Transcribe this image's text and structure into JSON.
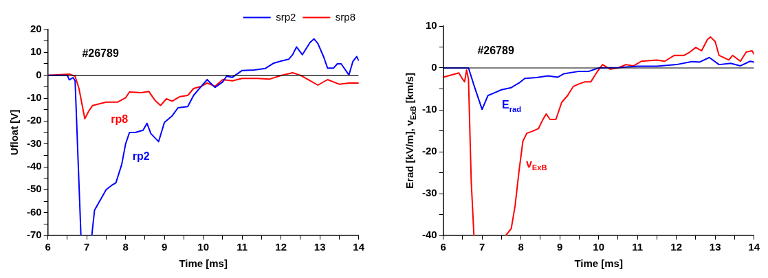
{
  "chart_data": [
    {
      "type": "line",
      "xlabel": "Time [ms]",
      "ylabel": "Ufloat [V]",
      "xlim": [
        6,
        14
      ],
      "ylim": [
        -70,
        20
      ],
      "xticks": [
        6,
        {
          "value": 6.5,
          "label": null
        },
        7,
        {
          "value": 7.5,
          "label": null
        },
        8,
        {
          "value": 8.5,
          "label": null
        },
        9,
        {
          "value": 9.5,
          "label": null
        },
        10,
        {
          "value": 10.5,
          "label": null
        },
        11,
        {
          "value": 11.5,
          "label": null
        },
        12,
        {
          "value": 12.5,
          "label": null
        },
        13,
        {
          "value": 13.5,
          "label": null
        },
        14
      ],
      "yticks": [
        -70,
        {
          "value": -65,
          "label": null
        },
        -60,
        {
          "value": -55,
          "label": null
        },
        -50,
        {
          "value": -45,
          "label": null
        },
        -40,
        {
          "value": -35,
          "label": null
        },
        -30,
        {
          "value": -25,
          "label": null
        },
        -20,
        {
          "value": -15,
          "label": null
        },
        -10,
        {
          "value": -5,
          "label": null
        },
        0,
        {
          "value": 5,
          "label": null
        },
        10,
        {
          "value": 15,
          "label": null
        },
        20
      ],
      "legend": "top right",
      "line_style": "solid",
      "marker": "none",
      "ref_lines": [
        {
          "axis": "y",
          "value": 0,
          "color": "#000000"
        }
      ],
      "annotations": [
        "#26789",
        "rp8",
        "rp2"
      ],
      "series": [
        {
          "name": "srp2",
          "color": "#0000ff",
          "x": [
            6,
            6.5,
            6.55,
            6.65,
            6.7,
            6.85,
            7.0,
            7.13,
            7.2,
            7.4,
            7.5,
            7.65,
            7.75,
            7.9,
            8.0,
            8.1,
            8.25,
            8.45,
            8.55,
            8.65,
            8.85,
            9.0,
            9.2,
            9.35,
            9.6,
            9.75,
            9.95,
            10.1,
            10.3,
            10.5,
            10.6,
            10.75,
            11.0,
            11.3,
            11.6,
            11.8,
            12.0,
            12.2,
            12.3,
            12.4,
            12.55,
            12.75,
            12.85,
            12.95,
            13.1,
            13.2,
            13.35,
            13.45,
            13.55,
            13.75,
            13.85,
            13.95,
            14.0
          ],
          "values": [
            0,
            0,
            -2,
            -1,
            -2.4,
            -70,
            null,
            -70,
            -59,
            -53,
            -50,
            -48,
            -47,
            -39,
            -30,
            -25,
            -25,
            -24,
            -21,
            -25.5,
            -29,
            -20.6,
            -17.7,
            -14.2,
            -13.7,
            -8.8,
            -4.8,
            -1.9,
            -5.3,
            -2.9,
            -0.4,
            -0.9,
            2.1,
            2.3,
            3,
            5.2,
            6.2,
            7,
            9,
            12.4,
            9,
            14.4,
            15.9,
            13.9,
            8,
            3.1,
            3.1,
            5,
            5,
            0.1,
            6,
            8.2,
            6.5
          ]
        },
        {
          "name": "srp8",
          "color": "#ff0000",
          "x": [
            6,
            6.55,
            6.7,
            6.8,
            6.95,
            7.05,
            7.15,
            7.5,
            7.8,
            8.0,
            8.1,
            8.4,
            8.6,
            8.75,
            8.9,
            9.05,
            9.2,
            9.4,
            9.6,
            9.75,
            9.95,
            10.1,
            10.3,
            10.5,
            10.75,
            11.0,
            11.4,
            11.7,
            12.0,
            12.3,
            12.5,
            12.75,
            12.95,
            13.2,
            13.5,
            13.75,
            14.0
          ],
          "values": [
            0,
            0.5,
            -0.4,
            -5.8,
            -19,
            -15.7,
            -13.2,
            -11.7,
            -11.7,
            -9.8,
            -7.3,
            -7.6,
            -7.1,
            -10.8,
            -13.2,
            -10.3,
            -11.3,
            -9.3,
            -8.8,
            -5.8,
            -4.8,
            -3.4,
            -4.8,
            -1.9,
            -2.4,
            -1.4,
            -1.4,
            -1.7,
            -0.1,
            1.1,
            0,
            -2.4,
            -4.3,
            -1.9,
            -3.9,
            -3.4,
            -3.4
          ]
        }
      ]
    },
    {
      "type": "line",
      "xlabel": "Time [ms]",
      "ylabel": "Erad [kV/m], v$_{ExB}$ [km/s]",
      "xlim": [
        6,
        14
      ],
      "ylim": [
        -40,
        10
      ],
      "xticks": [
        6,
        {
          "value": 6.5,
          "label": null
        },
        7,
        {
          "value": 7.5,
          "label": null
        },
        8,
        {
          "value": 8.5,
          "label": null
        },
        9,
        {
          "value": 9.5,
          "label": null
        },
        10,
        {
          "value": 10.5,
          "label": null
        },
        11,
        {
          "value": 11.5,
          "label": null
        },
        12,
        {
          "value": 12.5,
          "label": null
        },
        13,
        {
          "value": 13.5,
          "label": null
        },
        14
      ],
      "yticks": [
        -40,
        {
          "value": -35,
          "label": null
        },
        -30,
        {
          "value": -25,
          "label": null
        },
        -20,
        {
          "value": -15,
          "label": null
        },
        -10,
        {
          "value": -5,
          "label": null
        },
        0,
        {
          "value": 5,
          "label": null
        },
        10
      ],
      "line_style": "solid",
      "marker": "none",
      "ref_lines": [
        {
          "axis": "y",
          "value": 0,
          "color": "#000000"
        }
      ],
      "annotations": [
        "#26789",
        "E$_{rad}$",
        "v$_{ExB}$"
      ],
      "series": [
        {
          "color": "#0000ff",
          "x": [
            6,
            6.5,
            6.65,
            6.8,
            7.0,
            7.15,
            7.3,
            7.5,
            7.75,
            7.95,
            8.1,
            8.4,
            8.7,
            8.95,
            9.1,
            9.5,
            9.75,
            10,
            10.5,
            11,
            11.5,
            12,
            12.4,
            12.6,
            12.85,
            13.1,
            13.4,
            13.65,
            13.9,
            14
          ],
          "values": [
            0,
            0,
            0,
            -4.4,
            -9.9,
            -6.6,
            -6,
            -5.2,
            -4.7,
            -3.6,
            -2.5,
            -2.3,
            -1.9,
            -2.2,
            -1.4,
            -0.8,
            -0.8,
            0,
            0.1,
            0.4,
            0.4,
            0.8,
            1.5,
            1.4,
            2.5,
            0.8,
            1.1,
            0.5,
            1.6,
            1.4
          ]
        },
        {
          "color": "#ff0000",
          "x": [
            6,
            6.4,
            6.5,
            6.55,
            6.6,
            6.65,
            6.72,
            6.79,
            7.2,
            7.61,
            7.75,
            7.85,
            7.95,
            8.05,
            8.15,
            8.3,
            8.45,
            8.55,
            8.65,
            8.75,
            8.9,
            9.05,
            9.2,
            9.35,
            9.5,
            9.65,
            9.8,
            9.95,
            10.1,
            10.3,
            10.5,
            10.7,
            10.9,
            11.1,
            11.5,
            11.7,
            11.95,
            12.2,
            12.35,
            12.5,
            12.65,
            12.8,
            12.88,
            13.0,
            13.1,
            13.35,
            13.45,
            13.65,
            13.8,
            13.95,
            14
          ],
          "values": [
            -2.2,
            -1.2,
            -2.7,
            -3.3,
            -0.5,
            -2.7,
            -27,
            -40,
            null,
            -40,
            -38.4,
            -32.9,
            -24.7,
            -17.5,
            -15.6,
            -15.1,
            -14.5,
            -12.6,
            -11,
            -12.3,
            -12.3,
            -8.2,
            -6.6,
            -4.4,
            -3.8,
            -3.3,
            -3.3,
            -1.1,
            0.8,
            -0.3,
            0,
            0.8,
            0.5,
            1.6,
            1.9,
            1.6,
            3,
            3,
            3.8,
            4.9,
            4.1,
            6.8,
            7.4,
            6.3,
            3,
            1.9,
            3,
            1.6,
            3.8,
            4.1,
            3.3
          ]
        }
      ]
    }
  ]
}
